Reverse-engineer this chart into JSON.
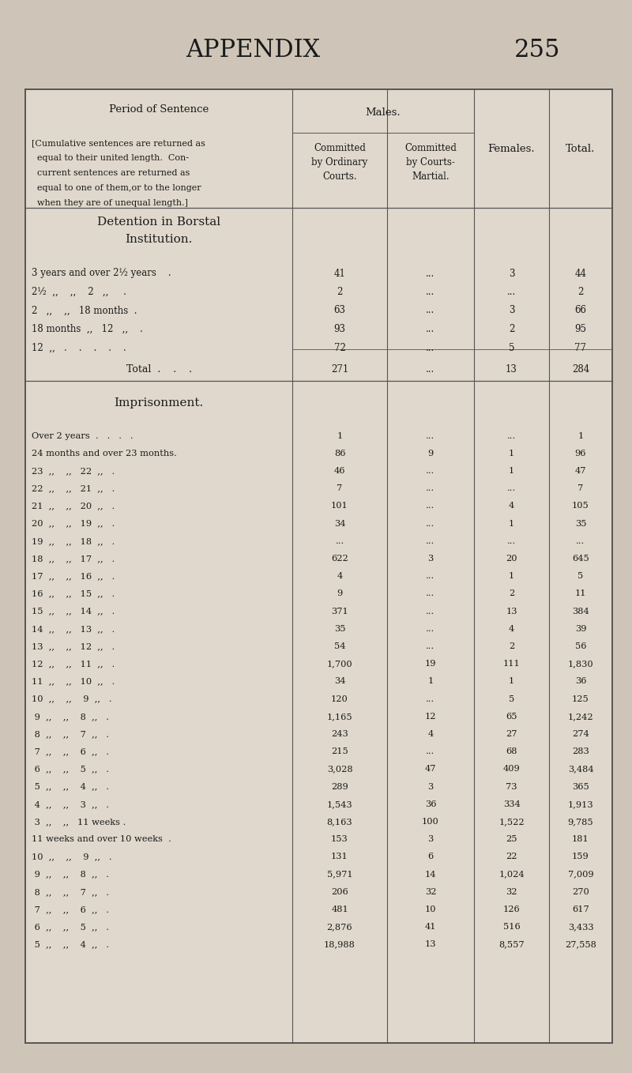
{
  "page_title": "APPENDIX",
  "page_number": "255",
  "bg_color": "#cec5b8",
  "table_bg": "#e0d8cc",
  "text_color": "#1a1a1a",
  "header_row1_col1": "Period of Sentence",
  "header_subtext": "[Cumulative sentences are returned as\n   equal to their united length.  Con-\n   current sentences are returned as\n   equal to one of them,⁠or to the longer\n   when they are of unequal length.]",
  "males_header": "Males.",
  "col2_header": "Committed\nby Ordinary\nCourts.",
  "col3_header": "Committed\nby Courts-\nMartial.",
  "col4_header": "Females.",
  "col5_header": "Total.",
  "section1_line1": "Detention in Borstal",
  "section1_line2": "Institution.",
  "rows_borstal": [
    {
      "label": "3 years and over 2½ years    .",
      "c2": "41",
      "c3": "...",
      "c4": "3",
      "c5": "44"
    },
    {
      "label": "2½  ,,    ,,    2   ,,     .",
      "c2": "2",
      "c3": "...",
      "c4": "...",
      "c5": "2"
    },
    {
      "label": "2   ,,    ,,   18 months  .",
      "c2": "63",
      "c3": "...",
      "c4": "3",
      "c5": "66"
    },
    {
      "label": "18 months  ,,   12   ,,    .",
      "c2": "93",
      "c3": "...",
      "c4": "2",
      "c5": "95"
    },
    {
      "label": "12  ,,   .    .    .    .    .",
      "c2": "72",
      "c3": "...",
      "c4": "5",
      "c5": "77"
    }
  ],
  "total_borstal": {
    "label": "Total  .    .    .",
    "c2": "271",
    "c3": "...",
    "c4": "13",
    "c5": "284"
  },
  "section2_title": "Imprisonment.",
  "rows_imprisonment": [
    {
      "label": "Over 2 years  .   .   .   .",
      "c2": "1",
      "c3": "...",
      "c4": "...",
      "c5": "1"
    },
    {
      "label": "24 months and over 23 months.",
      "c2": "86",
      "c3": "9",
      "c4": "1",
      "c5": "96"
    },
    {
      "label": "23  ,,    ,,   22  ,,   .",
      "c2": "46",
      "c3": "...",
      "c4": "1",
      "c5": "47"
    },
    {
      "label": "22  ,,    ,,   21  ,,   .",
      "c2": "7",
      "c3": "...",
      "c4": "...",
      "c5": "7"
    },
    {
      "label": "21  ,,    ,,   20  ,,   .",
      "c2": "101",
      "c3": "...",
      "c4": "4",
      "c5": "105"
    },
    {
      "label": "20  ,,    ,,   19  ,,   .",
      "c2": "34",
      "c3": "...",
      "c4": "1",
      "c5": "35"
    },
    {
      "label": "19  ,,    ,,   18  ,,   .",
      "c2": "...",
      "c3": "...",
      "c4": "...",
      "c5": "..."
    },
    {
      "label": "18  ,,    ,,   17  ,,   .",
      "c2": "622",
      "c3": "3",
      "c4": "20",
      "c5": "645"
    },
    {
      "label": "17  ,,    ,,   16  ,,   .",
      "c2": "4",
      "c3": "...",
      "c4": "1",
      "c5": "5"
    },
    {
      "label": "16  ,,    ,,   15  ,,   .",
      "c2": "9",
      "c3": "...",
      "c4": "2",
      "c5": "11"
    },
    {
      "label": "15  ,,    ,,   14  ,,   .",
      "c2": "371",
      "c3": "...",
      "c4": "13",
      "c5": "384"
    },
    {
      "label": "14  ,,    ,,   13  ,,   .",
      "c2": "35",
      "c3": "...",
      "c4": "4",
      "c5": "39"
    },
    {
      "label": "13  ,,    ,,   12  ,,   .",
      "c2": "54",
      "c3": "...",
      "c4": "2",
      "c5": "56"
    },
    {
      "label": "12  ,,    ,,   11  ,,   .",
      "c2": "1,700",
      "c3": "19",
      "c4": "111",
      "c5": "1,830"
    },
    {
      "label": "11  ,,    ,,   10  ,,   .",
      "c2": "34",
      "c3": "1",
      "c4": "1",
      "c5": "36"
    },
    {
      "label": "10  ,,    ,,    9  ,,   .",
      "c2": "120",
      "c3": "...",
      "c4": "5",
      "c5": "125"
    },
    {
      "label": " 9  ,,    ,,    8  ,,   .",
      "c2": "1,165",
      "c3": "12",
      "c4": "65",
      "c5": "1,242"
    },
    {
      "label": " 8  ,,    ,,    7  ,,   .",
      "c2": "243",
      "c3": "4",
      "c4": "27",
      "c5": "274"
    },
    {
      "label": " 7  ,,    ,,    6  ,,   .",
      "c2": "215",
      "c3": "...",
      "c4": "68",
      "c5": "283"
    },
    {
      "label": " 6  ,,    ,,    5  ,,   .",
      "c2": "3,028",
      "c3": "47",
      "c4": "409",
      "c5": "3,484"
    },
    {
      "label": " 5  ,,    ,,    4  ,,   .",
      "c2": "289",
      "c3": "3",
      "c4": "73",
      "c5": "365"
    },
    {
      "label": " 4  ,,    ,,    3  ,,   .",
      "c2": "1,543",
      "c3": "36",
      "c4": "334",
      "c5": "1,913"
    },
    {
      "label": " 3  ,,    ,,   11 weeks .",
      "c2": "8,163",
      "c3": "100",
      "c4": "1,522",
      "c5": "9,785"
    },
    {
      "label": "11 weeks and over 10 weeks  .",
      "c2": "153",
      "c3": "3",
      "c4": "25",
      "c5": "181"
    },
    {
      "label": "10  ,,    ,,    9  ,,   .",
      "c2": "131",
      "c3": "6",
      "c4": "22",
      "c5": "159"
    },
    {
      "label": " 9  ,,    ,,    8  ,,   .",
      "c2": "5,971",
      "c3": "14",
      "c4": "1,024",
      "c5": "7,009"
    },
    {
      "label": " 8  ,,    ,,    7  ,,   .",
      "c2": "206",
      "c3": "32",
      "c4": "32",
      "c5": "270"
    },
    {
      "label": " 7  ,,    ,,    6  ,,   .",
      "c2": "481",
      "c3": "10",
      "c4": "126",
      "c5": "617"
    },
    {
      "label": " 6  ,,    ,,    5  ,,   .",
      "c2": "2,876",
      "c3": "41",
      "c4": "516",
      "c5": "3,433"
    },
    {
      "label": " 5  ,,    ,,    4  ,,   .",
      "c2": "18,988",
      "c3": "13",
      "c4": "8,557",
      "c5": "27,558"
    }
  ]
}
